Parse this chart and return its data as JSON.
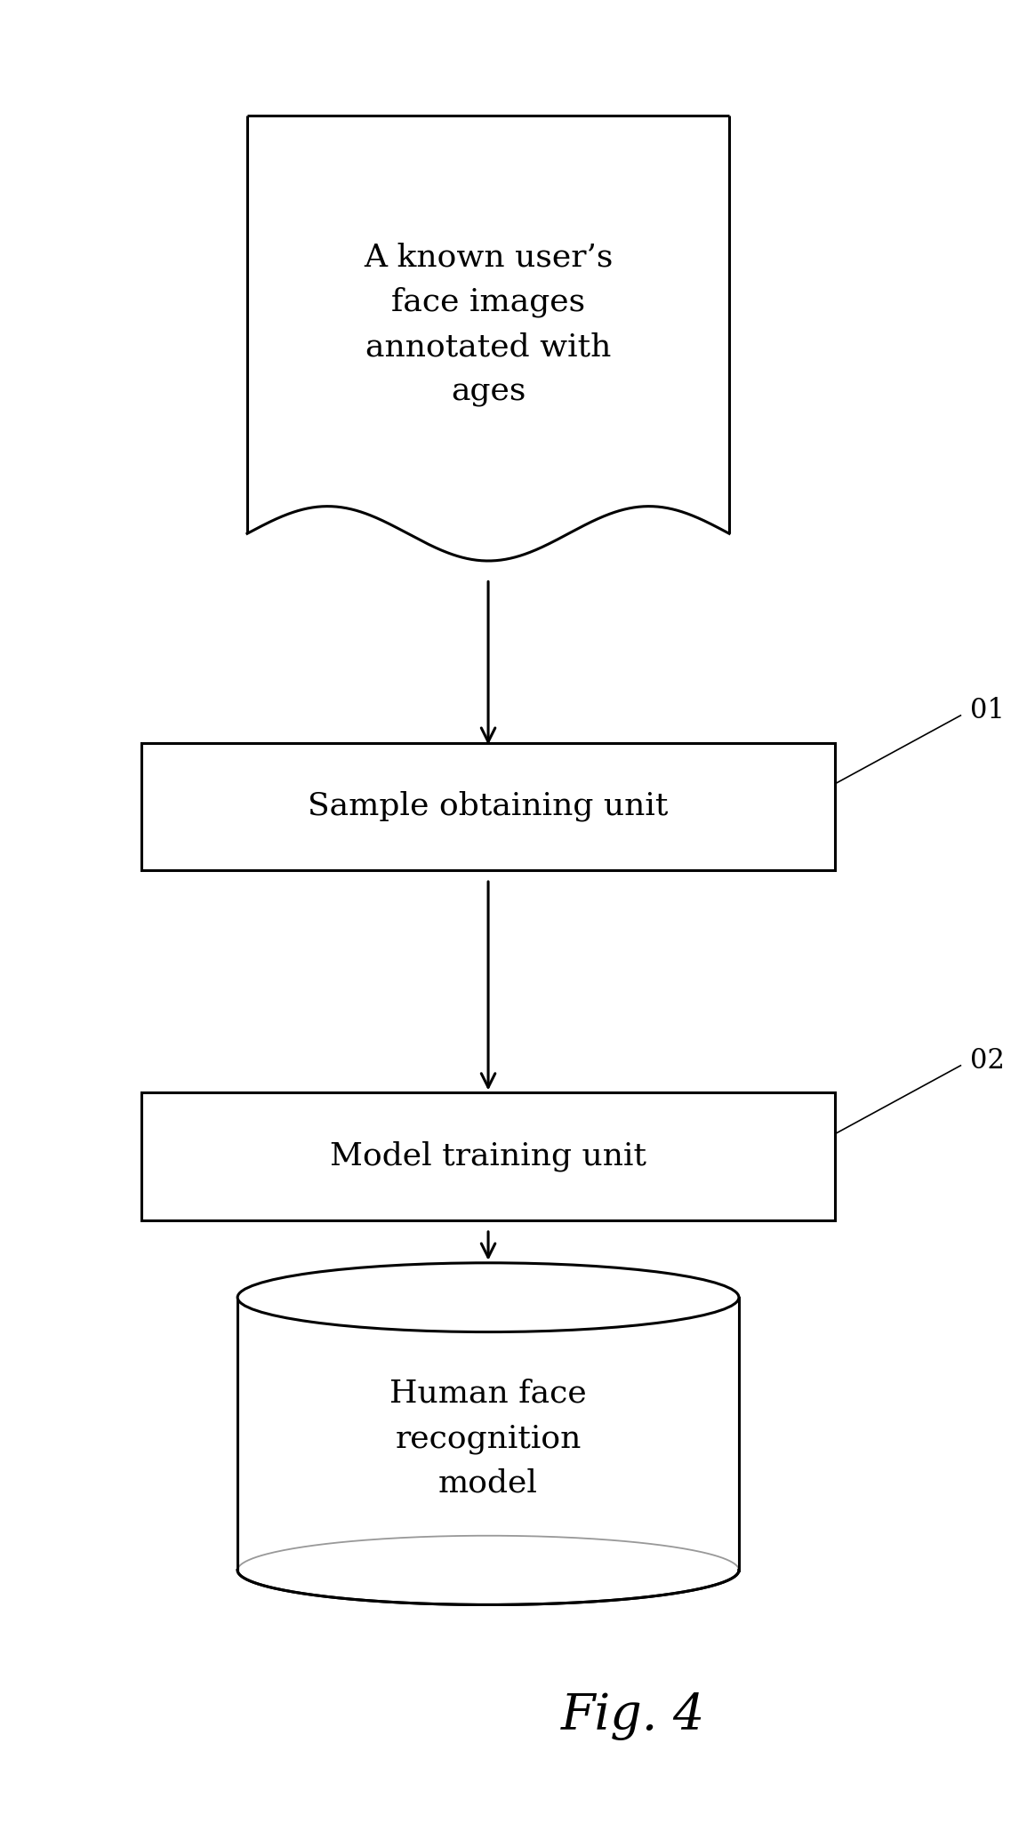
{
  "bg_color": "#ffffff",
  "fig_width": 11.37,
  "fig_height": 20.6,
  "title": "Fig. 4",
  "box1_text": "A known user’s\nface images\nannotated with\nages",
  "box2_text": "Sample obtaining unit",
  "box3_text": "Model training unit",
  "cylinder_text": "Human face\nrecognition\nmodel",
  "label01": "01",
  "label02": "02",
  "font_size_boxes": 26,
  "font_size_cylinder": 26,
  "font_size_labels": 22,
  "font_size_title": 40,
  "line_color": "#000000",
  "line_width": 2.2
}
